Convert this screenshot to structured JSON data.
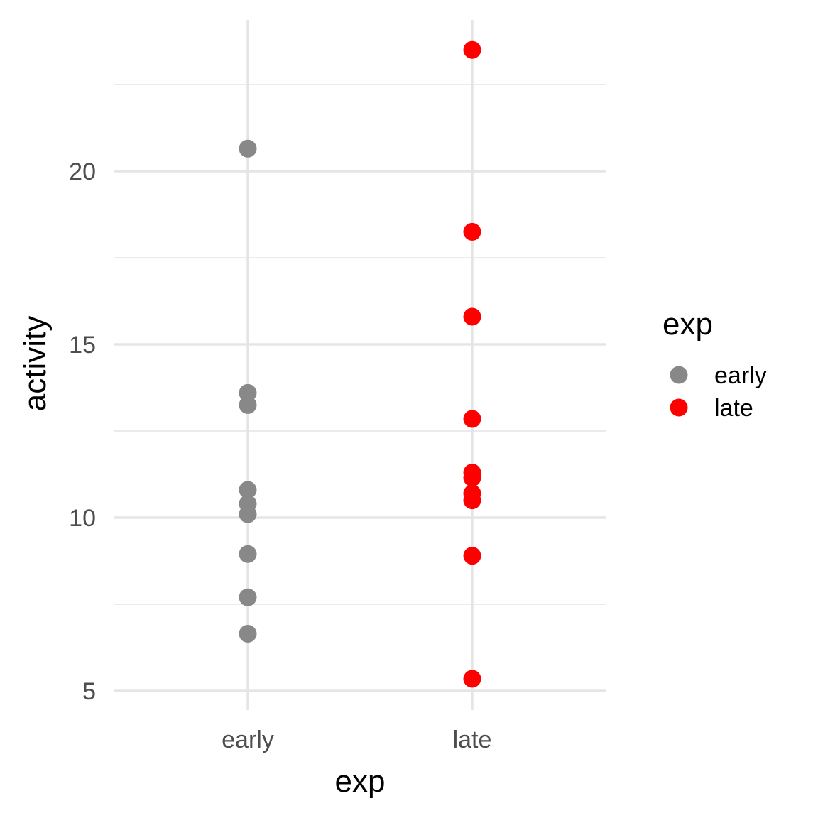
{
  "chart_data": {
    "type": "scatter",
    "title": "",
    "xlabel": "exp",
    "ylabel": "activity",
    "categories": [
      "early",
      "late"
    ],
    "ylim": [
      4.3,
      24.2
    ],
    "yticks": [
      5,
      10,
      15,
      20
    ],
    "y_minor_ticks": [
      7.5,
      12.5,
      17.5,
      22.5
    ],
    "grid": true,
    "legend": {
      "title": "exp",
      "placement": "right",
      "entries": [
        {
          "label": "early",
          "color": "#888888"
        },
        {
          "label": "late",
          "color": "#ff0000"
        }
      ]
    },
    "series": [
      {
        "name": "early",
        "color": "#888888",
        "x": "early",
        "values": [
          20.65,
          13.6,
          13.25,
          10.8,
          10.4,
          10.1,
          8.95,
          7.7,
          6.65
        ]
      },
      {
        "name": "late",
        "color": "#ff0000",
        "x": "late",
        "values": [
          23.5,
          18.25,
          15.8,
          12.85,
          11.3,
          11.15,
          10.7,
          10.5,
          8.9,
          5.35
        ]
      }
    ]
  }
}
